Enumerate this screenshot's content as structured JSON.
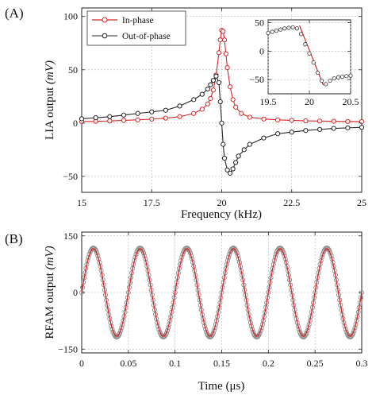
{
  "colors": {
    "in_phase": "#d62728",
    "out_of_phase": "#222222",
    "grid": "#b5b5b5",
    "rfam_marker": "#8c8c8c"
  },
  "chart_data": [
    {
      "panel_label": "(A)",
      "type": "line",
      "xlabel": "Frequency (kHz)",
      "ylabel": "LIA output ",
      "ylabel_unit": "(mV)",
      "xlim": [
        15,
        25
      ],
      "ylim": [
        -65,
        108
      ],
      "xticks": [
        15,
        17.5,
        20,
        22.5,
        25
      ],
      "xtick_labels": [
        "15",
        "17.5",
        "20",
        "22.5",
        "25"
      ],
      "yticks": [
        -50,
        0,
        50,
        100
      ],
      "ytick_labels": [
        "−50",
        "0",
        "50",
        "100"
      ],
      "grid": true,
      "legend_position": "top-left",
      "series": [
        {
          "name": "In-phase",
          "color": "#d62728",
          "marker": "circle",
          "x": [
            15.0,
            15.5,
            16.0,
            16.5,
            17.0,
            17.5,
            18.0,
            18.5,
            19.0,
            19.3,
            19.5,
            19.6,
            19.7,
            19.8,
            19.9,
            19.95,
            20.0,
            20.05,
            20.1,
            20.15,
            20.2,
            20.3,
            20.4,
            20.5,
            20.7,
            21.0,
            21.5,
            22.0,
            22.5,
            23.0,
            23.5,
            24.0,
            24.5,
            25.0
          ],
          "y": [
            1.5,
            1.6,
            2.0,
            2.5,
            3.0,
            3.7,
            4.6,
            6.0,
            9.0,
            13.0,
            18.0,
            23.0,
            31.0,
            45.0,
            66.0,
            78.0,
            87.0,
            86.0,
            78.0,
            65.0,
            52.0,
            34.0,
            22.0,
            15.0,
            9.0,
            5.5,
            3.8,
            3.0,
            2.5,
            2.1,
            1.9,
            1.7,
            1.5,
            1.4
          ]
        },
        {
          "name": "Out-of-phase",
          "color": "#222222",
          "marker": "circle",
          "x": [
            15.0,
            15.5,
            16.0,
            16.5,
            17.0,
            17.5,
            18.0,
            18.5,
            19.0,
            19.3,
            19.5,
            19.6,
            19.7,
            19.8,
            19.9,
            19.95,
            20.0,
            20.05,
            20.1,
            20.2,
            20.3,
            20.4,
            20.5,
            20.6,
            20.8,
            21.0,
            21.5,
            22.0,
            22.5,
            23.0,
            23.5,
            24.0,
            24.5,
            25.0
          ],
          "y": [
            4.0,
            5.0,
            6.0,
            7.5,
            9.0,
            10.5,
            12.0,
            16.0,
            22.0,
            27.0,
            32.0,
            36.0,
            40.0,
            44.0,
            38.0,
            20.0,
            0.0,
            -20.0,
            -33.0,
            -44.0,
            -47.0,
            -43.0,
            -37.0,
            -31.0,
            -25.0,
            -20.0,
            -14.0,
            -10.0,
            -8.5,
            -7.0,
            -6.0,
            -5.0,
            -4.5,
            -4.0
          ]
        }
      ],
      "inset": {
        "xlim": [
          19.5,
          20.5
        ],
        "ylim": [
          -75,
          55
        ],
        "xticks": [
          19.5,
          20,
          20.5
        ],
        "xtick_labels": [
          "19.5",
          "20",
          "20.5"
        ],
        "yticks": [
          -50,
          0,
          50
        ],
        "ytick_labels": [
          "−50",
          "0",
          "50"
        ],
        "fit_line": {
          "x": [
            19.88,
            20.17
          ],
          "y": [
            45,
            -60
          ]
        },
        "points": {
          "x": [
            19.5,
            19.55,
            19.6,
            19.65,
            19.7,
            19.75,
            19.8,
            19.85,
            19.9,
            19.95,
            20.0,
            20.05,
            20.1,
            20.15,
            20.2,
            20.25,
            20.3,
            20.35,
            20.4,
            20.45,
            20.5
          ],
          "y": [
            32,
            34,
            36,
            38,
            40,
            41,
            42,
            40,
            30,
            12,
            -4,
            -20,
            -38,
            -52,
            -58,
            -52,
            -48,
            -46,
            -45,
            -44,
            -43
          ]
        }
      }
    },
    {
      "panel_label": "(B)",
      "type": "line",
      "xlabel": "Time ",
      "xlabel_unit": "(μs)",
      "ylabel": "RFAM output ",
      "ylabel_unit": "(mV)",
      "xlim": [
        0,
        0.3
      ],
      "ylim": [
        -160,
        160
      ],
      "xticks": [
        0,
        0.05,
        0.1,
        0.15,
        0.2,
        0.25,
        0.3
      ],
      "xtick_labels": [
        "0",
        "0.05",
        "0.1",
        "0.15",
        "0.2",
        "0.25",
        "0.3"
      ],
      "yticks": [
        -150,
        0,
        150
      ],
      "ytick_labels": [
        "−150",
        "0",
        "150"
      ],
      "grid": true,
      "series": [
        {
          "name": "",
          "style": "measured-markers",
          "color": "#8c8c8c",
          "amplitude": 118,
          "frequency_per_us": 20,
          "x_start": 0,
          "x_end": 0.3
        },
        {
          "name": "",
          "style": "fit-line",
          "color": "#d62728",
          "amplitude": 116,
          "frequency_per_us": 20,
          "x_start": 0,
          "x_end": 0.3
        }
      ]
    }
  ]
}
